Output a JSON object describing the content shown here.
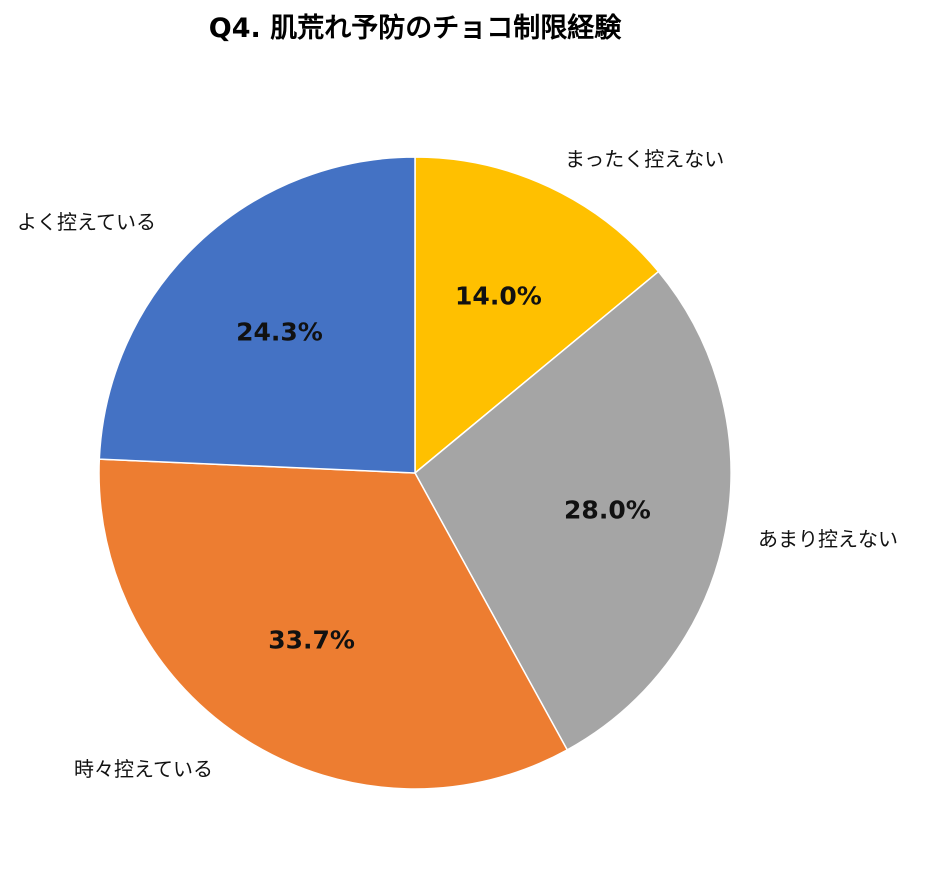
{
  "chart_data": {
    "type": "pie",
    "title": "Q4. 肌荒れ予防のチョコ制限経験",
    "categories": [
      "まったく控えない",
      "あまり控えない",
      "時々控えている",
      "よく控えている"
    ],
    "values": [
      14.0,
      28.0,
      33.7,
      24.3
    ],
    "value_labels": [
      "14.0%",
      "28.0%",
      "33.7%",
      "24.3%"
    ],
    "colors": [
      "#FFC000",
      "#A5A5A5",
      "#ED7D31",
      "#4472C4"
    ],
    "start_angle_deg": 0,
    "direction": "clockwise",
    "legend": "none"
  }
}
